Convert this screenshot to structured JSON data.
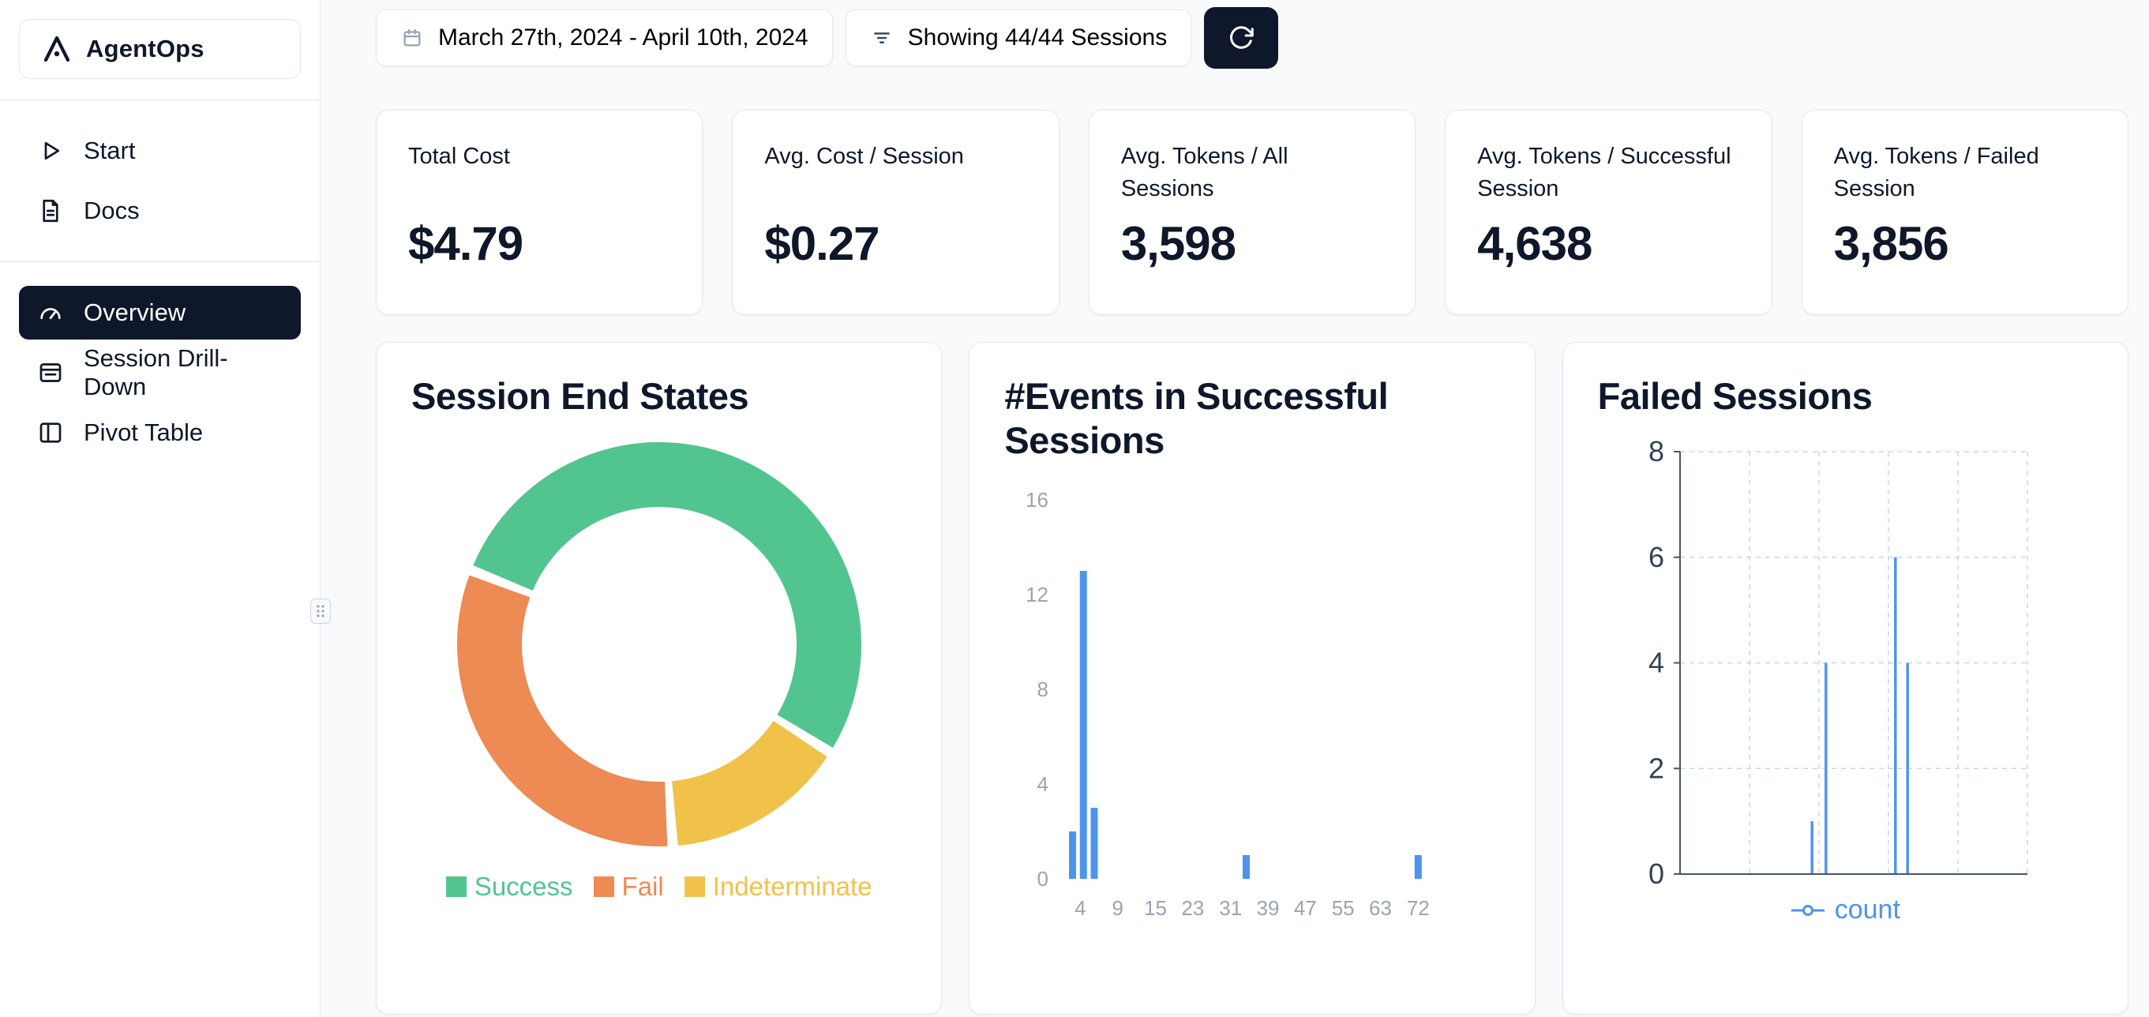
{
  "app": {
    "name": "AgentOps"
  },
  "sidebar": {
    "items_top": [
      {
        "label": "Start",
        "icon": "play-icon"
      },
      {
        "label": "Docs",
        "icon": "docs-icon"
      }
    ],
    "items_main": [
      {
        "label": "Overview",
        "icon": "gauge-icon",
        "active": true
      },
      {
        "label": "Session Drill-Down",
        "icon": "session-card-icon",
        "active": false
      },
      {
        "label": "Pivot Table",
        "icon": "pivot-columns-icon",
        "active": false
      }
    ]
  },
  "toolbar": {
    "date_range": "March 27th, 2024 - April 10th, 2024",
    "filter_label": "Showing 44/44 Sessions",
    "icons": [
      "calendar-icon",
      "filter-icon",
      "refresh-icon"
    ]
  },
  "stats": [
    {
      "label": "Total Cost",
      "value": "$4.79"
    },
    {
      "label": "Avg. Cost / Session",
      "value": "$0.27"
    },
    {
      "label": "Avg. Tokens / All Sessions",
      "value": "3,598"
    },
    {
      "label": "Avg. Tokens / Successful Session",
      "value": "4,638"
    },
    {
      "label": "Avg. Tokens / Failed Session",
      "value": "3,856"
    }
  ],
  "chart_data": [
    {
      "type": "pie",
      "donut": true,
      "title": "Session End States",
      "legend_position": "bottom",
      "start_angle": 293,
      "draw_order": [
        0,
        2,
        1
      ],
      "slices": [
        {
          "label": "Success",
          "percent": 53.5,
          "color": "#52c48f"
        },
        {
          "label": "Fail",
          "percent": 32.0,
          "color": "#ee8a53"
        },
        {
          "label": "Indeterminate",
          "percent": 14.5,
          "color": "#f0c24a"
        }
      ]
    },
    {
      "type": "bar",
      "title": "#Events in Successful Sessions",
      "ylim": [
        0,
        16
      ],
      "y_ticks": [
        0,
        4,
        8,
        12,
        16
      ],
      "x_tick_labels": [
        "4",
        "9",
        "15",
        "23",
        "31",
        "39",
        "47",
        "55",
        "63",
        "72"
      ],
      "x_tick_pos": [
        0.048,
        0.134,
        0.221,
        0.307,
        0.394,
        0.48,
        0.566,
        0.653,
        0.739,
        0.826
      ],
      "bar_color": "#4d94ec",
      "bars": [
        {
          "x": 3,
          "pos": 0.03,
          "count": 2
        },
        {
          "x": 4,
          "pos": 0.055,
          "count": 13
        },
        {
          "x": 5,
          "pos": 0.08,
          "count": 3
        },
        {
          "x": 36,
          "pos": 0.43,
          "count": 1
        },
        {
          "x": 72,
          "pos": 0.826,
          "count": 1
        }
      ]
    },
    {
      "type": "line",
      "title": "Failed Sessions",
      "ylim": [
        0,
        8
      ],
      "y_ticks": [
        0,
        2,
        4,
        6,
        8
      ],
      "grid": "dashed",
      "grid_x_pos": [
        0.2,
        0.4,
        0.6,
        0.8,
        1.0
      ],
      "series": [
        {
          "name": "count",
          "color": "#4d94ec",
          "points": [
            {
              "pos": 0.38,
              "value": 1
            },
            {
              "pos": 0.42,
              "value": 4
            },
            {
              "pos": 0.62,
              "value": 6
            },
            {
              "pos": 0.655,
              "value": 4
            }
          ]
        }
      ]
    }
  ]
}
